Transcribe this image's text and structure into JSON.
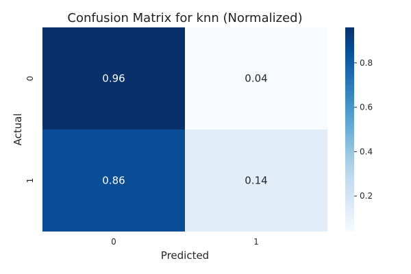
{
  "chart_data": {
    "type": "heatmap",
    "title": "Confusion Matrix for knn (Normalized)",
    "xlabel": "Predicted",
    "ylabel": "Actual",
    "x_categories": [
      "0",
      "1"
    ],
    "y_categories": [
      "0",
      "1"
    ],
    "values": [
      [
        0.96,
        0.04
      ],
      [
        0.86,
        0.14
      ]
    ],
    "cell_labels": [
      [
        "0.96",
        "0.04"
      ],
      [
        "0.86",
        "0.14"
      ]
    ],
    "colormap": "Blues",
    "colorbar": {
      "range": [
        0.04,
        0.96
      ],
      "ticks": [
        0.2,
        0.4,
        0.6,
        0.8
      ],
      "tick_labels": [
        "0.2",
        "0.4",
        "0.6",
        "0.8"
      ]
    },
    "grid": false
  },
  "colors": {
    "cmap_stops": [
      "#f7fbff",
      "#deebf7",
      "#c6dbef",
      "#9ecae1",
      "#6baed6",
      "#4292c6",
      "#2171b5",
      "#08519c",
      "#08306b"
    ]
  }
}
